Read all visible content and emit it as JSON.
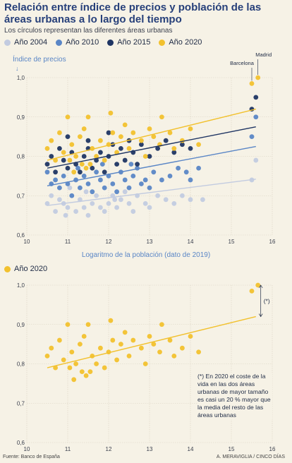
{
  "header": {
    "title": "Relación entre índice de precios y población de las áreas urbanas a lo largo del tiempo",
    "subtitle": "Los círculos representan las diferentes áreas urbanas"
  },
  "footer": {
    "source": "Fuente: Banco de España",
    "credit": "A. MERAVIGLIA / CINCO DÍAS"
  },
  "note": "(*) En 2020 el coste de la vida en las dos áreas urbanas de mayor tamaño es casi un 20 % mayor que la media del resto de las áreas urbanas",
  "chart_data": [
    {
      "type": "scatter",
      "ylabel": "Índice de precios",
      "xlabel": "Logaritmo de la población (dato de 2019)",
      "xlim": [
        10,
        16
      ],
      "ylim": [
        0.6,
        1.0
      ],
      "xticks": [
        "10",
        "11",
        "12",
        "13",
        "14",
        "15",
        "16"
      ],
      "yticks": [
        "0,6",
        "0,7",
        "0,8",
        "0,9",
        "1,0"
      ],
      "grid": true,
      "annotations": [
        "Madrid",
        "Barcelona"
      ],
      "series": [
        {
          "name": "Año 2004",
          "color": "#c2cbe0",
          "trend": [
            [
              10.5,
              0.675
            ],
            [
              15.6,
              0.742
            ]
          ],
          "points": [
            [
              10.5,
              0.68
            ],
            [
              10.6,
              0.7
            ],
            [
              10.7,
              0.66
            ],
            [
              10.8,
              0.69
            ],
            [
              10.9,
              0.68
            ],
            [
              11.0,
              0.67
            ],
            [
              11.1,
              0.7
            ],
            [
              11.2,
              0.66
            ],
            [
              11.3,
              0.69
            ],
            [
              11.4,
              0.67
            ],
            [
              11.5,
              0.65
            ],
            [
              11.6,
              0.68
            ],
            [
              11.7,
              0.7
            ],
            [
              11.8,
              0.67
            ],
            [
              11.9,
              0.66
            ],
            [
              12.0,
              0.68
            ],
            [
              12.1,
              0.7
            ],
            [
              12.2,
              0.67
            ],
            [
              12.3,
              0.69
            ],
            [
              12.4,
              0.71
            ],
            [
              12.5,
              0.68
            ],
            [
              12.6,
              0.66
            ],
            [
              12.7,
              0.7
            ],
            [
              12.9,
              0.68
            ],
            [
              13.0,
              0.67
            ],
            [
              13.2,
              0.7
            ],
            [
              13.4,
              0.69
            ],
            [
              13.6,
              0.68
            ],
            [
              13.8,
              0.7
            ],
            [
              14.0,
              0.69
            ],
            [
              14.3,
              0.69
            ],
            [
              15.5,
              0.74
            ],
            [
              15.6,
              0.79
            ],
            [
              11.05,
              0.72
            ],
            [
              11.45,
              0.71
            ],
            [
              12.15,
              0.69
            ],
            [
              10.95,
              0.65
            ]
          ]
        },
        {
          "name": "Año 2010",
          "color": "#5a86c6",
          "trend": [
            [
              10.5,
              0.725
            ],
            [
              15.6,
              0.825
            ]
          ],
          "points": [
            [
              10.5,
              0.76
            ],
            [
              10.6,
              0.73
            ],
            [
              10.7,
              0.74
            ],
            [
              10.8,
              0.72
            ],
            [
              10.9,
              0.75
            ],
            [
              11.0,
              0.73
            ],
            [
              11.1,
              0.7
            ],
            [
              11.2,
              0.74
            ],
            [
              11.3,
              0.72
            ],
            [
              11.4,
              0.75
            ],
            [
              11.5,
              0.73
            ],
            [
              11.6,
              0.71
            ],
            [
              11.7,
              0.76
            ],
            [
              11.8,
              0.74
            ],
            [
              11.9,
              0.72
            ],
            [
              12.0,
              0.75
            ],
            [
              12.1,
              0.73
            ],
            [
              12.2,
              0.71
            ],
            [
              12.3,
              0.76
            ],
            [
              12.4,
              0.74
            ],
            [
              12.5,
              0.72
            ],
            [
              12.6,
              0.75
            ],
            [
              12.7,
              0.77
            ],
            [
              12.8,
              0.73
            ],
            [
              12.9,
              0.74
            ],
            [
              13.0,
              0.72
            ],
            [
              13.1,
              0.76
            ],
            [
              13.3,
              0.74
            ],
            [
              13.5,
              0.75
            ],
            [
              13.7,
              0.77
            ],
            [
              13.9,
              0.76
            ],
            [
              14.0,
              0.74
            ],
            [
              14.2,
              0.77
            ],
            [
              15.5,
              0.85
            ],
            [
              15.6,
              0.9
            ],
            [
              11.25,
              0.77
            ],
            [
              11.85,
              0.78
            ],
            [
              12.55,
              0.78
            ]
          ]
        },
        {
          "name": "Año 2015",
          "color": "#1f3563",
          "trend": [
            [
              10.5,
              0.77
            ],
            [
              15.6,
              0.875
            ]
          ],
          "points": [
            [
              10.5,
              0.78
            ],
            [
              10.6,
              0.8
            ],
            [
              10.7,
              0.76
            ],
            [
              10.8,
              0.82
            ],
            [
              10.9,
              0.79
            ],
            [
              11.0,
              0.77
            ],
            [
              11.1,
              0.81
            ],
            [
              11.2,
              0.78
            ],
            [
              11.3,
              0.76
            ],
            [
              11.4,
              0.8
            ],
            [
              11.5,
              0.82
            ],
            [
              11.6,
              0.77
            ],
            [
              11.7,
              0.79
            ],
            [
              11.8,
              0.81
            ],
            [
              11.9,
              0.76
            ],
            [
              12.0,
              0.8
            ],
            [
              12.1,
              0.83
            ],
            [
              12.2,
              0.78
            ],
            [
              12.3,
              0.82
            ],
            [
              12.4,
              0.79
            ],
            [
              12.5,
              0.84
            ],
            [
              12.6,
              0.81
            ],
            [
              12.7,
              0.78
            ],
            [
              12.8,
              0.83
            ],
            [
              13.0,
              0.8
            ],
            [
              13.2,
              0.82
            ],
            [
              13.4,
              0.84
            ],
            [
              13.6,
              0.81
            ],
            [
              13.8,
              0.83
            ],
            [
              14.0,
              0.82
            ],
            [
              15.5,
              0.92
            ],
            [
              15.6,
              0.95
            ],
            [
              11.0,
              0.85
            ],
            [
              12.0,
              0.86
            ],
            [
              11.5,
              0.84
            ]
          ]
        },
        {
          "name": "Año 2020",
          "color": "#f2c12e",
          "trend": [
            [
              10.5,
              0.79
            ],
            [
              15.6,
              0.92
            ]
          ],
          "points": [
            [
              10.5,
              0.82
            ],
            [
              10.6,
              0.84
            ],
            [
              10.7,
              0.79
            ],
            [
              10.8,
              0.86
            ],
            [
              10.9,
              0.81
            ],
            [
              11.0,
              0.9
            ],
            [
              11.05,
              0.79
            ],
            [
              11.1,
              0.83
            ],
            [
              11.2,
              0.8
            ],
            [
              11.3,
              0.85
            ],
            [
              11.35,
              0.78
            ],
            [
              11.4,
              0.87
            ],
            [
              11.5,
              0.9
            ],
            [
              11.55,
              0.78
            ],
            [
              11.6,
              0.82
            ],
            [
              11.7,
              0.8
            ],
            [
              11.8,
              0.84
            ],
            [
              11.9,
              0.79
            ],
            [
              12.0,
              0.83
            ],
            [
              12.05,
              0.91
            ],
            [
              12.1,
              0.86
            ],
            [
              12.2,
              0.81
            ],
            [
              12.3,
              0.85
            ],
            [
              12.4,
              0.88
            ],
            [
              12.5,
              0.82
            ],
            [
              12.6,
              0.86
            ],
            [
              12.8,
              0.84
            ],
            [
              12.9,
              0.8
            ],
            [
              13.0,
              0.87
            ],
            [
              13.1,
              0.85
            ],
            [
              13.25,
              0.83
            ],
            [
              13.3,
              0.9
            ],
            [
              13.5,
              0.86
            ],
            [
              13.6,
              0.82
            ],
            [
              13.8,
              0.84
            ],
            [
              14.0,
              0.87
            ],
            [
              14.2,
              0.83
            ],
            [
              15.5,
              0.985
            ],
            [
              15.65,
              1.0
            ],
            [
              11.15,
              0.76
            ],
            [
              11.45,
              0.77
            ]
          ]
        }
      ]
    }
  ],
  "legends": {
    "top": [
      {
        "label": "Año 2004",
        "color": "#c2cbe0"
      },
      {
        "label": "Año 2010",
        "color": "#5a86c6"
      },
      {
        "label": "Año 2015",
        "color": "#1f3563"
      },
      {
        "label": "Año 2020",
        "color": "#f2c12e"
      }
    ],
    "bottom": [
      {
        "label": "Año 2020",
        "color": "#f2c12e"
      }
    ]
  },
  "bottom_chart_label": "(*)"
}
